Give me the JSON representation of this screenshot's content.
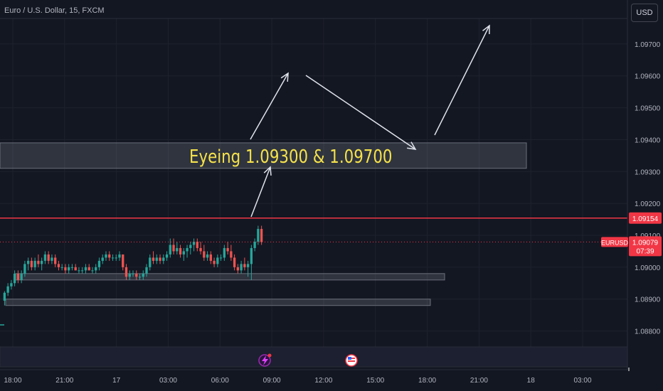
{
  "header": {
    "title": "Euro / U.S. Dollar, 15, FXCM",
    "currency_button": "USD"
  },
  "annotation": {
    "text": "Eyeing 1.09300 & 1.09700",
    "color": "#f5e14a"
  },
  "price_label": {
    "symbol": "EURUSD",
    "price": "1.09079",
    "countdown": "07:39"
  },
  "icons": [
    "lightning-event-icon",
    "us-flag-event-icon"
  ],
  "chart_data": {
    "type": "candlestick",
    "title": "Euro / U.S. Dollar, 15, FXCM",
    "ylim": [
      1.0875,
      1.0978
    ],
    "y_ticks": [
      {
        "v": 1.097,
        "label": "1.09700"
      },
      {
        "v": 1.096,
        "label": "1.09600"
      },
      {
        "v": 1.095,
        "label": "1.09500"
      },
      {
        "v": 1.094,
        "label": "1.09400"
      },
      {
        "v": 1.093,
        "label": "1.09300"
      },
      {
        "v": 1.092,
        "label": "1.09200"
      },
      {
        "v": 1.091,
        "label": "1.09100"
      },
      {
        "v": 1.09,
        "label": "1.09000"
      },
      {
        "v": 1.089,
        "label": "1.08900"
      },
      {
        "v": 1.088,
        "label": "1.08800"
      }
    ],
    "x_ticks": [
      "18:00",
      "21:00",
      "17",
      "03:00",
      "06:00",
      "09:00",
      "12:00",
      "15:00",
      "18:00",
      "21:00",
      "18",
      "03:00"
    ],
    "horizontal_line": {
      "value": 1.09154,
      "label": "1.09154",
      "color": "#f23645"
    },
    "last_price": {
      "value": 1.09079,
      "label": "1.09079",
      "color": "#f23645"
    },
    "zones": [
      {
        "from": 1.0931,
        "to": 1.0939
      },
      {
        "from": 1.0896,
        "to": 1.0898
      },
      {
        "from": 1.0889,
        "to": 1.089
      }
    ],
    "colors": {
      "up": "#26a69a",
      "down": "#ef5350",
      "grid": "#1e222d",
      "background": "#131722"
    },
    "candles": [
      [
        1.08895,
        1.08925,
        1.0888,
        1.0892
      ],
      [
        1.0892,
        1.0895,
        1.0891,
        1.0894
      ],
      [
        1.0894,
        1.0896,
        1.0893,
        1.0895
      ],
      [
        1.0895,
        1.0899,
        1.0894,
        1.0898
      ],
      [
        1.0898,
        1.0899,
        1.0895,
        1.0896
      ],
      [
        1.0896,
        1.0899,
        1.0895,
        1.0898
      ],
      [
        1.0898,
        1.0902,
        1.0897,
        1.0901
      ],
      [
        1.0901,
        1.0903,
        1.0899,
        1.0902
      ],
      [
        1.0902,
        1.0903,
        1.0899,
        1.09
      ],
      [
        1.09,
        1.0903,
        1.0899,
        1.0902
      ],
      [
        1.0902,
        1.0904,
        1.09,
        1.0901
      ],
      [
        1.0901,
        1.0903,
        1.0899,
        1.0902
      ],
      [
        1.0902,
        1.0905,
        1.0901,
        1.0904
      ],
      [
        1.0904,
        1.0905,
        1.0901,
        1.0902
      ],
      [
        1.0902,
        1.0904,
        1.0901,
        1.0903
      ],
      [
        1.0903,
        1.0904,
        1.09,
        1.0901
      ],
      [
        1.0901,
        1.0902,
        1.0899,
        1.09
      ],
      [
        1.09,
        1.0901,
        1.0899,
        1.09
      ],
      [
        1.09,
        1.0901,
        1.0898,
        1.0899
      ],
      [
        1.0899,
        1.0901,
        1.0898,
        1.09
      ],
      [
        1.09,
        1.0901,
        1.0899,
        1.09
      ],
      [
        1.09,
        1.0901,
        1.0899,
        1.0899
      ],
      [
        1.0899,
        1.09,
        1.0898,
        1.0899
      ],
      [
        1.0899,
        1.09,
        1.0898,
        1.0899
      ],
      [
        1.0899,
        1.0901,
        1.0898,
        1.09
      ],
      [
        1.09,
        1.0901,
        1.0899,
        1.0899
      ],
      [
        1.0899,
        1.09,
        1.0898,
        1.0899
      ],
      [
        1.0899,
        1.0901,
        1.0898,
        1.09
      ],
      [
        1.09,
        1.0903,
        1.0899,
        1.0902
      ],
      [
        1.0902,
        1.0904,
        1.0901,
        1.0903
      ],
      [
        1.0903,
        1.0905,
        1.0902,
        1.0904
      ],
      [
        1.0904,
        1.0905,
        1.0902,
        1.0903
      ],
      [
        1.0903,
        1.0904,
        1.0902,
        1.0903
      ],
      [
        1.0903,
        1.0904,
        1.0902,
        1.0903
      ],
      [
        1.0903,
        1.0905,
        1.0902,
        1.0904
      ],
      [
        1.0904,
        1.0904,
        1.0899,
        1.09
      ],
      [
        1.09,
        1.0901,
        1.0896,
        1.0897
      ],
      [
        1.0897,
        1.0899,
        1.0896,
        1.0898
      ],
      [
        1.0898,
        1.0899,
        1.0897,
        1.0898
      ],
      [
        1.0898,
        1.0899,
        1.0896,
        1.0897
      ],
      [
        1.0897,
        1.0898,
        1.0896,
        1.0897
      ],
      [
        1.0897,
        1.0899,
        1.0896,
        1.0898
      ],
      [
        1.0898,
        1.0901,
        1.0897,
        1.09
      ],
      [
        1.09,
        1.0904,
        1.0899,
        1.0903
      ],
      [
        1.0903,
        1.0905,
        1.0901,
        1.0902
      ],
      [
        1.0902,
        1.0904,
        1.0901,
        1.0903
      ],
      [
        1.0903,
        1.0904,
        1.0901,
        1.0902
      ],
      [
        1.0902,
        1.0904,
        1.0901,
        1.0903
      ],
      [
        1.0903,
        1.0905,
        1.0902,
        1.0904
      ],
      [
        1.0904,
        1.0909,
        1.0903,
        1.0907
      ],
      [
        1.0907,
        1.0909,
        1.0904,
        1.0905
      ],
      [
        1.0905,
        1.0908,
        1.0904,
        1.0906
      ],
      [
        1.0906,
        1.0907,
        1.0903,
        1.0904
      ],
      [
        1.0904,
        1.0906,
        1.0902,
        1.0905
      ],
      [
        1.0905,
        1.0907,
        1.0903,
        1.0906
      ],
      [
        1.0906,
        1.0908,
        1.0904,
        1.0907
      ],
      [
        1.0907,
        1.0909,
        1.0905,
        1.0908
      ],
      [
        1.0908,
        1.0909,
        1.0905,
        1.0906
      ],
      [
        1.0906,
        1.0908,
        1.0904,
        1.0905
      ],
      [
        1.0905,
        1.0907,
        1.0902,
        1.0903
      ],
      [
        1.0903,
        1.0905,
        1.0902,
        1.0904
      ],
      [
        1.0904,
        1.0905,
        1.0901,
        1.0902
      ],
      [
        1.0902,
        1.0903,
        1.09,
        1.0901
      ],
      [
        1.0901,
        1.0904,
        1.09,
        1.0903
      ],
      [
        1.0903,
        1.0904,
        1.0902,
        1.0903
      ],
      [
        1.0903,
        1.0907,
        1.0902,
        1.0906
      ],
      [
        1.0906,
        1.0908,
        1.0904,
        1.0905
      ],
      [
        1.0905,
        1.0907,
        1.0902,
        1.0903
      ],
      [
        1.0903,
        1.0904,
        1.0899,
        1.09
      ],
      [
        1.09,
        1.0901,
        1.0898,
        1.0899
      ],
      [
        1.0899,
        1.0902,
        1.0898,
        1.0901
      ],
      [
        1.0901,
        1.0903,
        1.0899,
        1.09
      ],
      [
        1.09,
        1.0902,
        1.0897,
        1.0901
      ],
      [
        1.0901,
        1.0907,
        1.0896,
        1.0906
      ],
      [
        1.0906,
        1.0909,
        1.0905,
        1.0908
      ],
      [
        1.0908,
        1.0913,
        1.0907,
        1.0912
      ],
      [
        1.0912,
        1.0913,
        1.0907,
        1.09079
      ]
    ]
  }
}
